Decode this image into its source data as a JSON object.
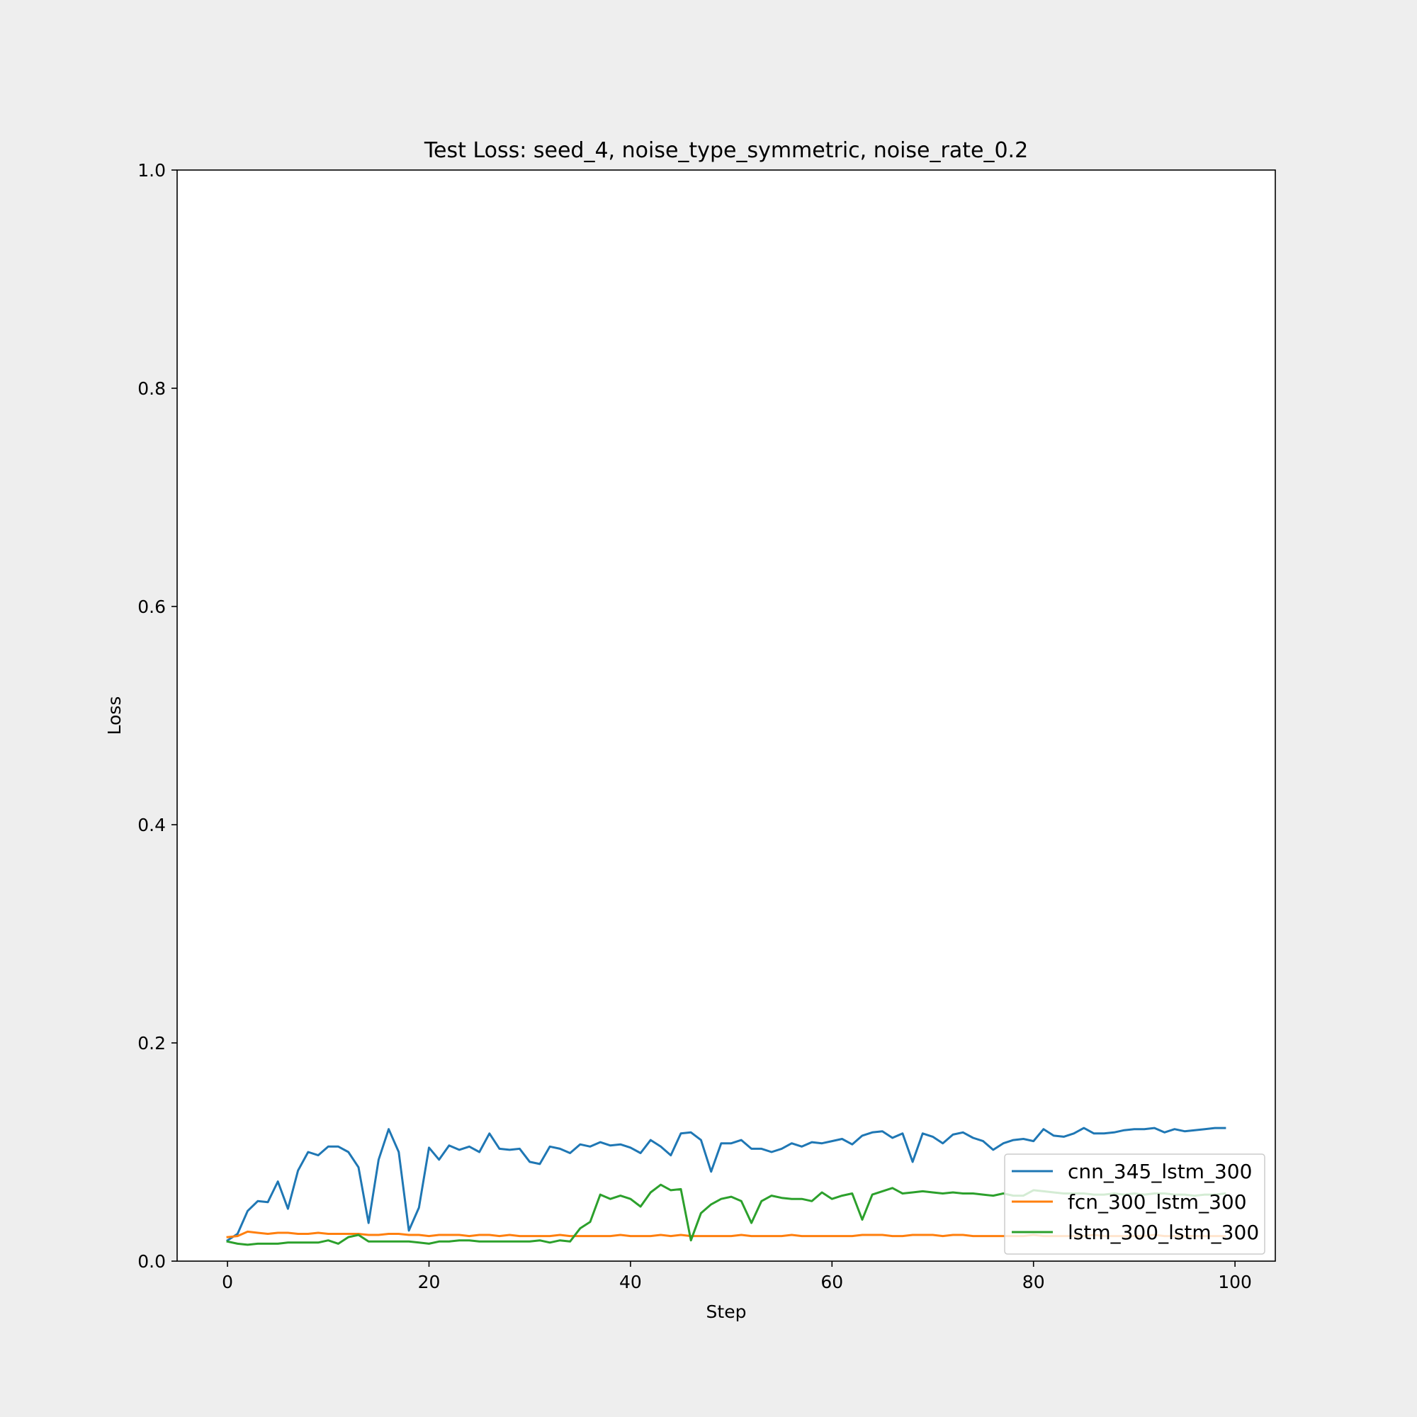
{
  "chart_data": {
    "type": "line",
    "title": "Test Loss: seed_4, noise_type_symmetric, noise_rate_0.2",
    "xlabel": "Step",
    "ylabel": "Loss",
    "xlim": [
      -5,
      104
    ],
    "ylim": [
      0.0,
      1.0
    ],
    "xticks": [
      0,
      20,
      40,
      60,
      80,
      100
    ],
    "xtick_labels": [
      "0",
      "20",
      "40",
      "60",
      "80",
      "100"
    ],
    "yticks": [
      0.0,
      0.2,
      0.4,
      0.6,
      0.8,
      1.0
    ],
    "ytick_labels": [
      "0.0",
      "0.2",
      "0.4",
      "0.6",
      "0.8",
      "1.0"
    ],
    "grid": false,
    "legend_position": "lower right",
    "x": [
      0,
      1,
      2,
      3,
      4,
      5,
      6,
      7,
      8,
      9,
      10,
      11,
      12,
      13,
      14,
      15,
      16,
      17,
      18,
      19,
      20,
      21,
      22,
      23,
      24,
      25,
      26,
      27,
      28,
      29,
      30,
      31,
      32,
      33,
      34,
      35,
      36,
      37,
      38,
      39,
      40,
      41,
      42,
      43,
      44,
      45,
      46,
      47,
      48,
      49,
      50,
      51,
      52,
      53,
      54,
      55,
      56,
      57,
      58,
      59,
      60,
      61,
      62,
      63,
      64,
      65,
      66,
      67,
      68,
      69,
      70,
      71,
      72,
      73,
      74,
      75,
      76,
      77,
      78,
      79,
      80,
      81,
      82,
      83,
      84,
      85,
      86,
      87,
      88,
      89,
      90,
      91,
      92,
      93,
      94,
      95,
      96,
      97,
      98,
      99
    ],
    "series": [
      {
        "name": "cnn_345_lstm_300",
        "color": "#1f77b4",
        "values": [
          0.019,
          0.025,
          0.046,
          0.055,
          0.054,
          0.073,
          0.048,
          0.083,
          0.1,
          0.097,
          0.105,
          0.105,
          0.1,
          0.086,
          0.035,
          0.093,
          0.121,
          0.1,
          0.028,
          0.049,
          0.104,
          0.093,
          0.106,
          0.102,
          0.105,
          0.1,
          0.117,
          0.103,
          0.102,
          0.103,
          0.091,
          0.089,
          0.105,
          0.103,
          0.099,
          0.107,
          0.105,
          0.109,
          0.106,
          0.107,
          0.104,
          0.099,
          0.111,
          0.105,
          0.097,
          0.117,
          0.118,
          0.111,
          0.082,
          0.108,
          0.108,
          0.111,
          0.103,
          0.103,
          0.1,
          0.103,
          0.108,
          0.105,
          0.109,
          0.108,
          0.11,
          0.112,
          0.107,
          0.115,
          0.118,
          0.119,
          0.113,
          0.117,
          0.091,
          0.117,
          0.114,
          0.108,
          0.116,
          0.118,
          0.113,
          0.11,
          0.102,
          0.108,
          0.111,
          0.112,
          0.11,
          0.121,
          0.115,
          0.114,
          0.117,
          0.122,
          0.117,
          0.117,
          0.118,
          0.12,
          0.121,
          0.121,
          0.122,
          0.118,
          0.121,
          0.119,
          0.12,
          0.121,
          0.122,
          0.122
        ]
      },
      {
        "name": "fcn_300_lstm_300",
        "color": "#ff7f0e",
        "values": [
          0.022,
          0.023,
          0.027,
          0.026,
          0.025,
          0.026,
          0.026,
          0.025,
          0.025,
          0.026,
          0.025,
          0.025,
          0.025,
          0.025,
          0.024,
          0.024,
          0.025,
          0.025,
          0.024,
          0.024,
          0.023,
          0.024,
          0.024,
          0.024,
          0.023,
          0.024,
          0.024,
          0.023,
          0.024,
          0.023,
          0.023,
          0.023,
          0.023,
          0.024,
          0.023,
          0.023,
          0.023,
          0.023,
          0.023,
          0.024,
          0.023,
          0.023,
          0.023,
          0.024,
          0.023,
          0.024,
          0.023,
          0.023,
          0.023,
          0.023,
          0.023,
          0.024,
          0.023,
          0.023,
          0.023,
          0.023,
          0.024,
          0.023,
          0.023,
          0.023,
          0.023,
          0.023,
          0.023,
          0.024,
          0.024,
          0.024,
          0.023,
          0.023,
          0.024,
          0.024,
          0.024,
          0.023,
          0.024,
          0.024,
          0.023,
          0.023,
          0.023,
          0.023,
          0.023,
          0.023,
          0.024,
          0.023,
          0.023,
          0.023,
          0.023,
          0.023,
          0.024,
          0.023,
          0.023,
          0.023,
          0.023,
          0.023,
          0.024,
          0.023,
          0.023,
          0.023,
          0.023,
          0.023,
          0.023,
          0.023
        ]
      },
      {
        "name": "lstm_300_lstm_300",
        "color": "#2ca02c",
        "values": [
          0.018,
          0.016,
          0.015,
          0.016,
          0.016,
          0.016,
          0.017,
          0.017,
          0.017,
          0.017,
          0.019,
          0.016,
          0.022,
          0.024,
          0.018,
          0.018,
          0.018,
          0.018,
          0.018,
          0.017,
          0.016,
          0.018,
          0.018,
          0.019,
          0.019,
          0.018,
          0.018,
          0.018,
          0.018,
          0.018,
          0.018,
          0.019,
          0.017,
          0.019,
          0.018,
          0.03,
          0.036,
          0.061,
          0.057,
          0.06,
          0.057,
          0.05,
          0.063,
          0.07,
          0.065,
          0.066,
          0.019,
          0.044,
          0.052,
          0.057,
          0.059,
          0.055,
          0.035,
          0.055,
          0.06,
          0.058,
          0.057,
          0.057,
          0.055,
          0.063,
          0.057,
          0.06,
          0.062,
          0.038,
          0.061,
          0.064,
          0.067,
          0.062,
          0.063,
          0.064,
          0.063,
          0.062,
          0.063,
          0.062,
          0.062,
          0.061,
          0.06,
          0.062,
          0.06,
          0.06,
          0.065,
          0.064,
          0.063,
          0.062,
          0.062,
          0.062,
          0.061,
          0.061,
          0.062,
          0.061,
          0.062,
          0.061,
          0.062,
          0.062,
          0.061,
          0.061,
          0.06,
          0.061,
          0.061,
          0.062
        ]
      }
    ]
  }
}
